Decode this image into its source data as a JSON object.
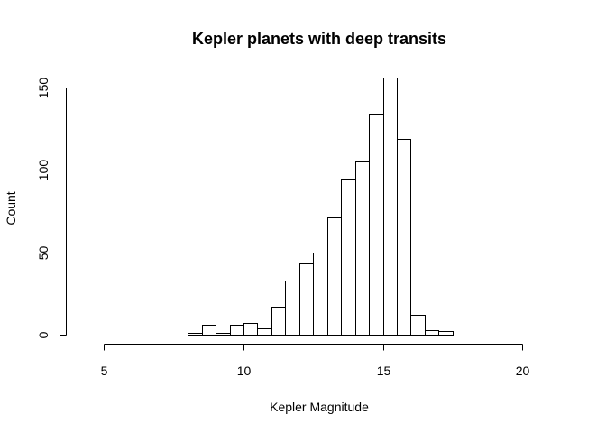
{
  "chart_data": {
    "type": "bar",
    "title": "Kepler planets with deep transits",
    "xlabel": "Kepler Magnitude",
    "ylabel": "Count",
    "xlim": [
      4.5,
      21
    ],
    "ylim": [
      0,
      155
    ],
    "x_ticks": [
      5,
      10,
      15,
      20
    ],
    "y_ticks": [
      0,
      50,
      100,
      150
    ],
    "bin_width": 0.5,
    "bin_start": 4.5,
    "values": [
      0,
      0,
      0,
      0,
      0,
      0,
      0,
      1,
      6,
      1,
      6,
      7,
      4,
      17,
      33,
      43,
      50,
      71,
      95,
      105,
      134,
      156,
      119,
      12,
      3,
      2,
      0,
      0,
      0,
      0,
      0,
      0,
      0
    ],
    "bar_fill": "#ffffff",
    "bar_stroke": "#000000",
    "grid": false,
    "legend": "none"
  }
}
